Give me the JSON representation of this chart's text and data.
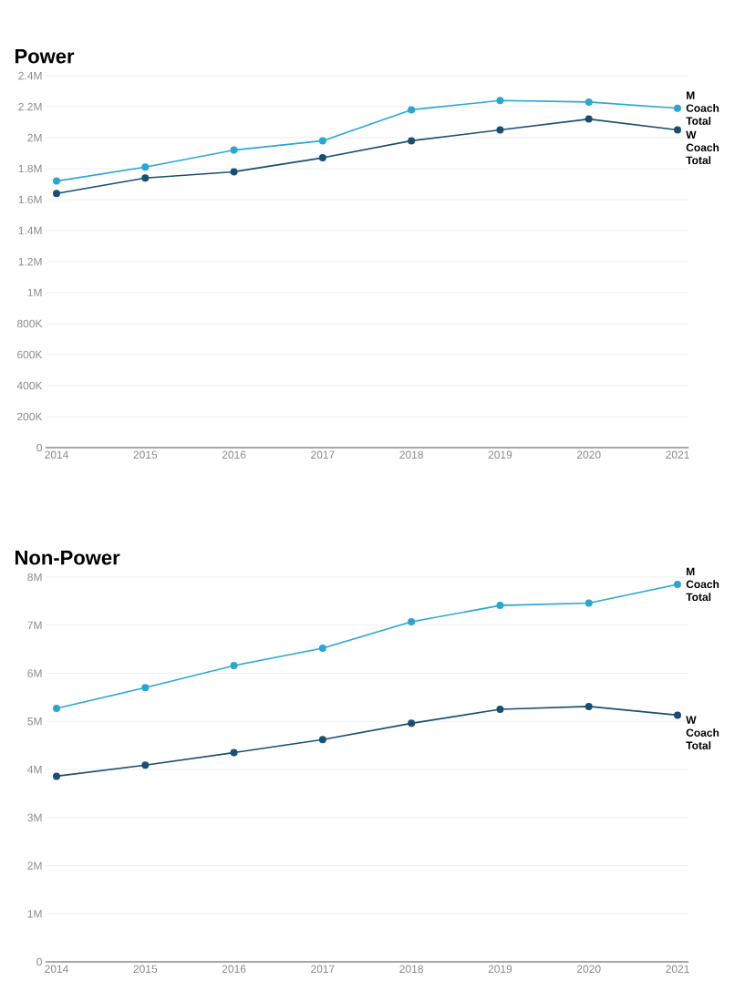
{
  "chart_data": [
    {
      "type": "line",
      "title": "Power",
      "categories": [
        "2014",
        "2015",
        "2016",
        "2017",
        "2018",
        "2019",
        "2020",
        "2021"
      ],
      "series": [
        {
          "name": "M Coach Total",
          "color": "#2aa7d0",
          "values": [
            1720000,
            1810000,
            1920000,
            1980000,
            2180000,
            2240000,
            2230000,
            2190000
          ]
        },
        {
          "name": "W Coach Total",
          "color": "#1a4f72",
          "values": [
            1640000,
            1740000,
            1780000,
            1870000,
            1980000,
            2050000,
            2120000,
            2050000
          ]
        }
      ],
      "ylim": [
        0,
        2400000
      ],
      "yticks": [
        {
          "value": 0,
          "label": "0"
        },
        {
          "value": 200000,
          "label": "200K"
        },
        {
          "value": 400000,
          "label": "400K"
        },
        {
          "value": 600000,
          "label": "600K"
        },
        {
          "value": 800000,
          "label": "800K"
        },
        {
          "value": 1000000,
          "label": "1M"
        },
        {
          "value": 1200000,
          "label": "1.2M"
        },
        {
          "value": 1400000,
          "label": "1.4M"
        },
        {
          "value": 1600000,
          "label": "1.6M"
        },
        {
          "value": 1800000,
          "label": "1.8M"
        },
        {
          "value": 2000000,
          "label": "2M"
        },
        {
          "value": 2200000,
          "label": "2.2M"
        },
        {
          "value": 2400000,
          "label": "2.4M"
        }
      ],
      "grid": "y",
      "marker": "circle",
      "line_style": "solid"
    },
    {
      "type": "line",
      "title": "Non-Power",
      "categories": [
        "2014",
        "2015",
        "2016",
        "2017",
        "2018",
        "2019",
        "2020",
        "2021"
      ],
      "series": [
        {
          "name": "M Coach Total",
          "color": "#2aa7d0",
          "values": [
            5270000,
            5700000,
            6160000,
            6520000,
            7070000,
            7410000,
            7460000,
            7850000
          ]
        },
        {
          "name": "W Coach Total",
          "color": "#1a4f72",
          "values": [
            3860000,
            4090000,
            4350000,
            4620000,
            4960000,
            5250000,
            5310000,
            5130000
          ]
        }
      ],
      "ylim": [
        0,
        8000000
      ],
      "yticks": [
        {
          "value": 0,
          "label": "0"
        },
        {
          "value": 1000000,
          "label": "1M"
        },
        {
          "value": 2000000,
          "label": "2M"
        },
        {
          "value": 3000000,
          "label": "3M"
        },
        {
          "value": 4000000,
          "label": "4M"
        },
        {
          "value": 5000000,
          "label": "5M"
        },
        {
          "value": 6000000,
          "label": "6M"
        },
        {
          "value": 7000000,
          "label": "7M"
        },
        {
          "value": 8000000,
          "label": "8M"
        }
      ],
      "grid": "y",
      "marker": "circle",
      "line_style": "solid"
    }
  ]
}
